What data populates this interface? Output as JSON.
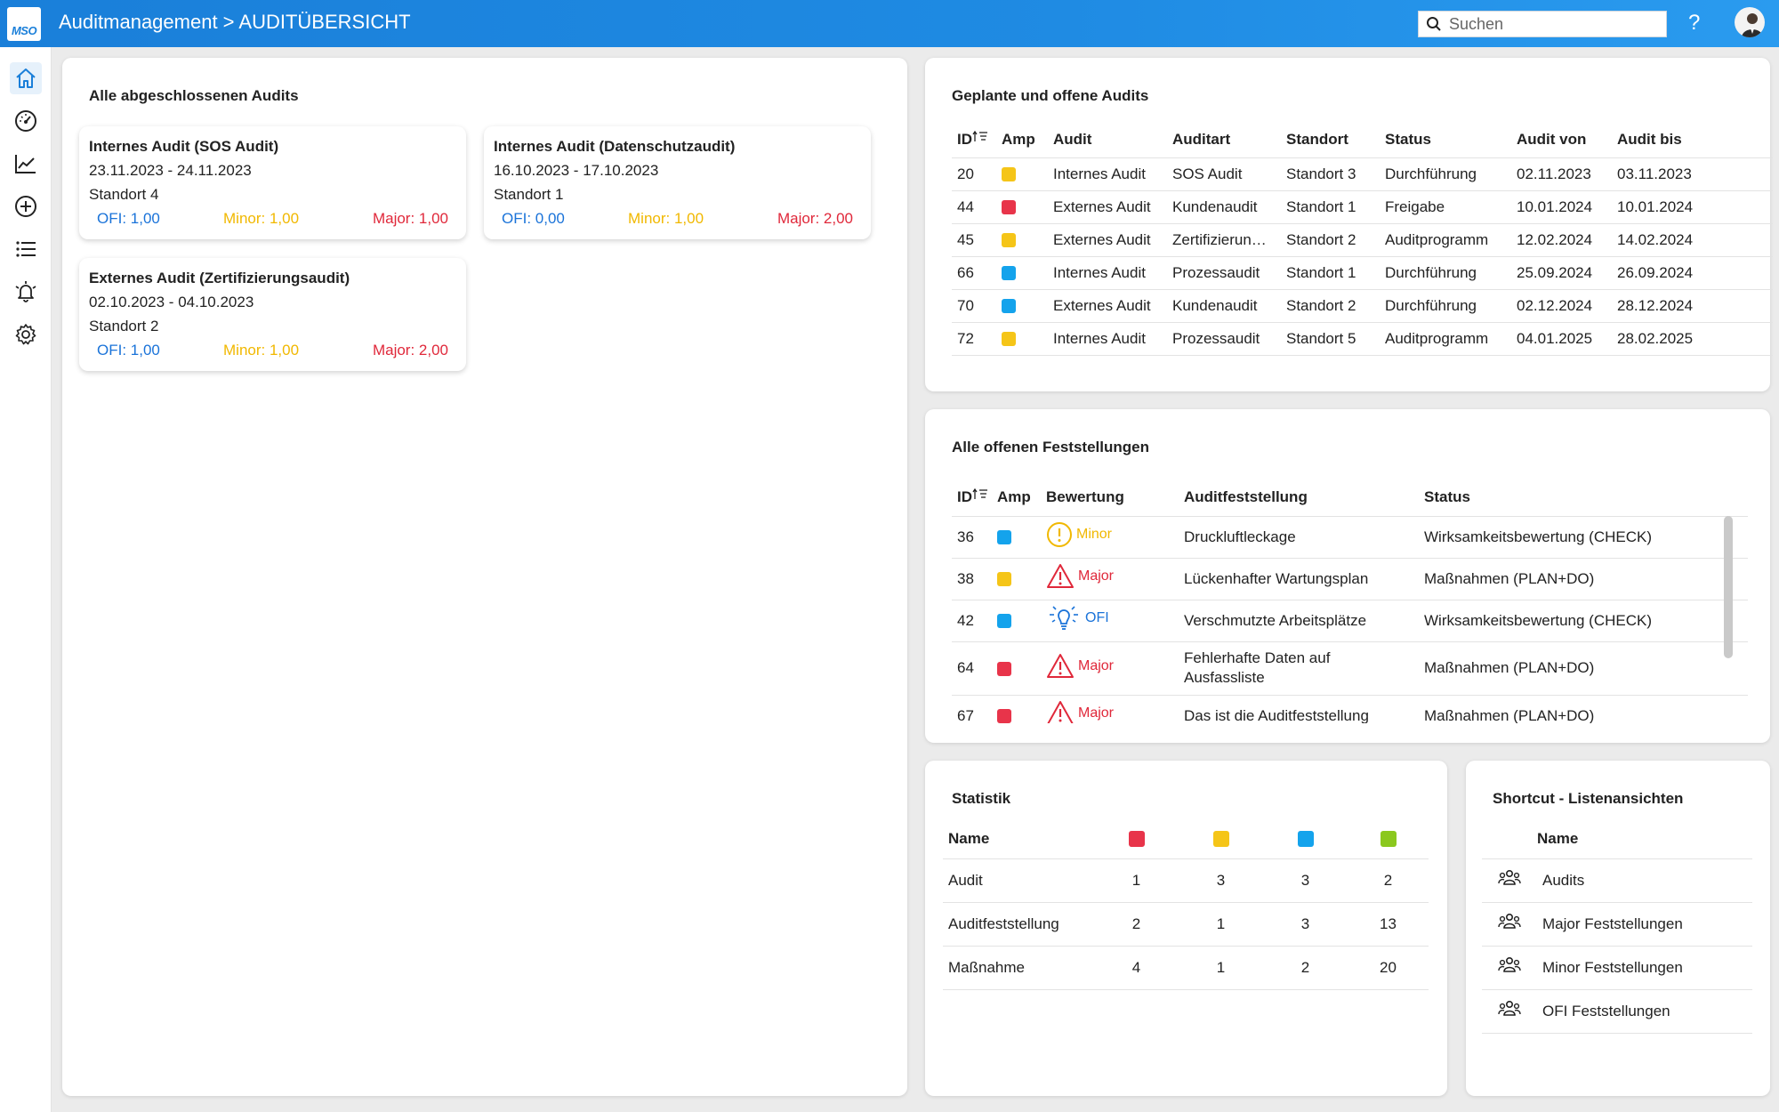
{
  "header": {
    "logo_text": "MSO",
    "title": "Auditmanagement > AUDITÜBERSICHT",
    "search_placeholder": "Suchen",
    "help_label": "?"
  },
  "sidebar": {
    "items": [
      {
        "icon": "home-icon",
        "active": true
      },
      {
        "icon": "dashboard-gauge-icon"
      },
      {
        "icon": "line-chart-icon"
      },
      {
        "icon": "add-circle-icon"
      },
      {
        "icon": "list-icon"
      },
      {
        "icon": "alarm-bell-icon"
      },
      {
        "icon": "gear-icon"
      }
    ]
  },
  "colors": {
    "red": "#e8344a",
    "yellow": "#f5c518",
    "blue": "#14a3ec",
    "green": "#8bc81e",
    "ofi": "#1a73d9",
    "minor": "#f1b800",
    "major": "#e0283a"
  },
  "completed": {
    "title": "Alle abgeschlossenen Audits",
    "cards": [
      {
        "title": "Internes Audit (SOS Audit)",
        "date": "23.11.2023 - 24.11.2023",
        "location": "Standort 4",
        "ofi": "OFI: 1,00",
        "minor": "Minor: 1,00",
        "major": "Major: 1,00"
      },
      {
        "title": "Internes Audit (Datenschutzaudit)",
        "date": "16.10.2023 - 17.10.2023",
        "location": "Standort 1",
        "ofi": "OFI: 0,00",
        "minor": "Minor: 1,00",
        "major": "Major: 2,00"
      },
      {
        "title": "Externes Audit (Zertifizierungsaudit)",
        "date": "02.10.2023 - 04.10.2023",
        "location": "Standort 2",
        "ofi": "OFI: 1,00",
        "minor": "Minor: 1,00",
        "major": "Major: 2,00"
      }
    ]
  },
  "planned": {
    "title": "Geplante und offene Audits",
    "columns": [
      "ID",
      "Amp",
      "Audit",
      "Auditart",
      "Standort",
      "Status",
      "Audit von",
      "Audit bis"
    ],
    "rows": [
      {
        "id": "20",
        "amp": "yellow",
        "audit": "Internes Audit",
        "art": "SOS Audit",
        "standort": "Standort 3",
        "status": "Durchführung",
        "von": "02.11.2023",
        "bis": "03.11.2023"
      },
      {
        "id": "44",
        "amp": "red",
        "audit": "Externes Audit",
        "art": "Kundenaudit",
        "standort": "Standort 1",
        "status": "Freigabe",
        "von": "10.01.2024",
        "bis": "10.01.2024"
      },
      {
        "id": "45",
        "amp": "yellow",
        "audit": "Externes Audit",
        "art": "Zertifizierun…",
        "standort": "Standort 2",
        "status": "Auditprogramm",
        "von": "12.02.2024",
        "bis": "14.02.2024"
      },
      {
        "id": "66",
        "amp": "blue",
        "audit": "Internes Audit",
        "art": "Prozessaudit",
        "standort": "Standort 1",
        "status": "Durchführung",
        "von": "25.09.2024",
        "bis": "26.09.2024"
      },
      {
        "id": "70",
        "amp": "blue",
        "audit": "Externes Audit",
        "art": "Kundenaudit",
        "standort": "Standort 2",
        "status": "Durchführung",
        "von": "02.12.2024",
        "bis": "28.12.2024"
      },
      {
        "id": "72",
        "amp": "yellow",
        "audit": "Internes Audit",
        "art": "Prozessaudit",
        "standort": "Standort 5",
        "status": "Auditprogramm",
        "von": "04.01.2025",
        "bis": "28.02.2025"
      }
    ]
  },
  "findings": {
    "title": "Alle offenen Feststellungen",
    "columns": [
      "ID",
      "Amp",
      "Bewertung",
      "Auditfeststellung",
      "Status"
    ],
    "rows": [
      {
        "id": "36",
        "amp": "blue",
        "rating": "Minor",
        "rating_icon": "exclamation-circle-icon",
        "text": "Druckluftleckage",
        "text2": "",
        "status": "Wirksamkeitsbewertung (CHECK)"
      },
      {
        "id": "38",
        "amp": "yellow",
        "rating": "Major",
        "rating_icon": "warning-triangle-icon",
        "text": "Lückenhafter Wartungsplan",
        "text2": "",
        "status": "Maßnahmen (PLAN+DO)"
      },
      {
        "id": "42",
        "amp": "blue",
        "rating": "OFI",
        "rating_icon": "lightbulb-icon",
        "text": "Verschmutzte Arbeitsplätze",
        "text2": "",
        "status": "Wirksamkeitsbewertung (CHECK)"
      },
      {
        "id": "64",
        "amp": "red",
        "rating": "Major",
        "rating_icon": "warning-triangle-icon",
        "text": "Fehlerhafte Daten auf",
        "text2": "Ausfassliste",
        "status": "Maßnahmen (PLAN+DO)"
      },
      {
        "id": "67",
        "amp": "red",
        "rating": "Major",
        "rating_icon": "warning-triangle-icon",
        "text": "Das ist die Auditfeststellung",
        "text2": "",
        "status": "Maßnahmen (PLAN+DO)"
      }
    ]
  },
  "statistik": {
    "title": "Statistik",
    "name_header": "Name",
    "header_colors": [
      "red",
      "yellow",
      "blue",
      "green"
    ],
    "rows": [
      {
        "name": "Audit",
        "values": [
          "1",
          "3",
          "3",
          "2"
        ]
      },
      {
        "name": "Auditfeststellung",
        "values": [
          "2",
          "1",
          "3",
          "13"
        ]
      },
      {
        "name": "Maßnahme",
        "values": [
          "4",
          "1",
          "2",
          "20"
        ]
      }
    ]
  },
  "shortcuts": {
    "title": "Shortcut - Listenansichten",
    "name_header": "Name",
    "items": [
      "Audits",
      "Major Feststellungen",
      "Minor Feststellungen",
      "OFI Feststellungen"
    ]
  }
}
